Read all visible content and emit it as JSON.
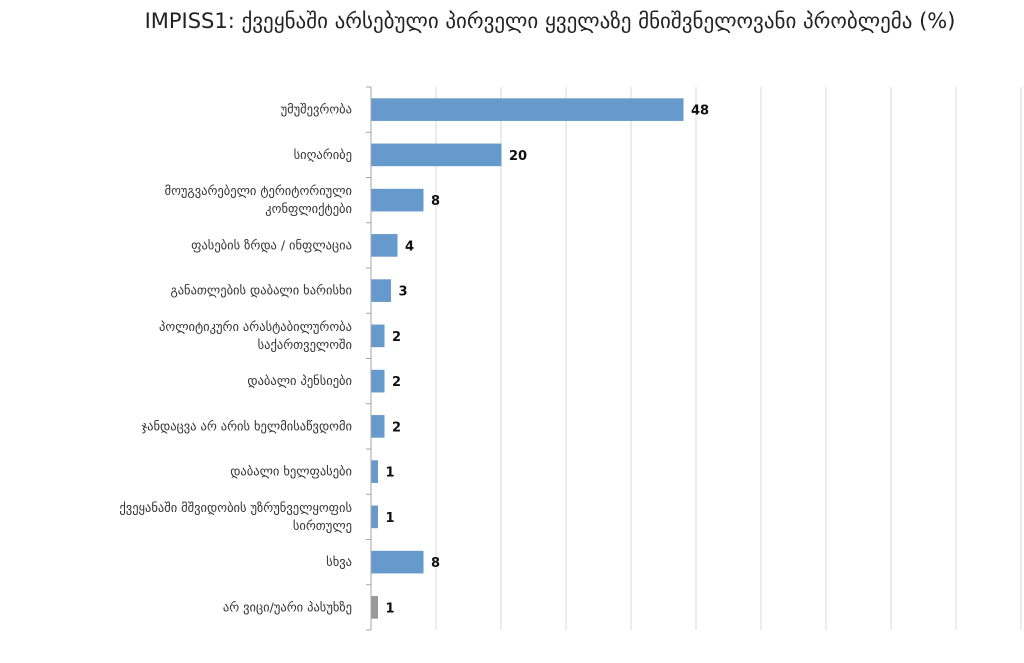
{
  "chart_data": {
    "type": "bar",
    "orientation": "horizontal",
    "title": "IMPISS1: ქვეყნაში არსებული პირველი ყველაზე მნიშვნელოვანი პრობლემა (%)",
    "categories": [
      "უმუშევრობა",
      "სიღარიბე",
      "მოუგვარებელი ტერიტორიული კონფლიქტები",
      "ფასების ზრდა / ინფლაცია",
      "განათლების დაბალი ხარისხი",
      "პოლიტიკური არასტაბილურობა საქართველოში",
      "დაბალი პენსიები",
      "ჯანდაცვა არ არის ხელმისაწვდომი",
      "დაბალი ხელფასები",
      "ქვეყანაში მშვიდობის უზრუნველყოფის სირთულე",
      "სხვა",
      "არ ვიცი/უარი პასუხზე"
    ],
    "category_lines": [
      [
        "უმუშევრობა"
      ],
      [
        "სიღარიბე"
      ],
      [
        "მოუგვარებელი ტერიტორიული",
        "კონფლიქტები"
      ],
      [
        "ფასების ზრდა / ინფლაცია"
      ],
      [
        "განათლების დაბალი ხარისხი"
      ],
      [
        "პოლიტიკური არასტაბილურობა",
        "საქართველოში"
      ],
      [
        "დაბალი პენსიები"
      ],
      [
        "ჯანდაცვა არ არის ხელმისაწვდომი"
      ],
      [
        "დაბალი ხელფასები"
      ],
      [
        "ქვეყანაში მშვიდობის უზრუნველყოფის",
        "სირთულე"
      ],
      [
        "სხვა"
      ],
      [
        "არ ვიცი/უარი პასუხზე"
      ]
    ],
    "values": [
      48,
      20,
      8,
      4,
      3,
      2,
      2,
      2,
      1,
      1,
      8,
      1
    ],
    "value_labels": [
      "48",
      "20",
      "8",
      "4",
      "3",
      "2",
      "2",
      "2",
      "1",
      "1",
      "8",
      "1"
    ],
    "bar_colors": [
      "#6699cc",
      "#6699cc",
      "#6699cc",
      "#6699cc",
      "#6699cc",
      "#6699cc",
      "#6699cc",
      "#6699cc",
      "#6699cc",
      "#6699cc",
      "#6699cc",
      "#999999"
    ],
    "xlim": [
      0,
      100
    ],
    "grid_step": 10,
    "grid": true,
    "legend": "none",
    "colors": {
      "grid": "#d9d9d9",
      "axis": "#a6a6a6"
    }
  }
}
